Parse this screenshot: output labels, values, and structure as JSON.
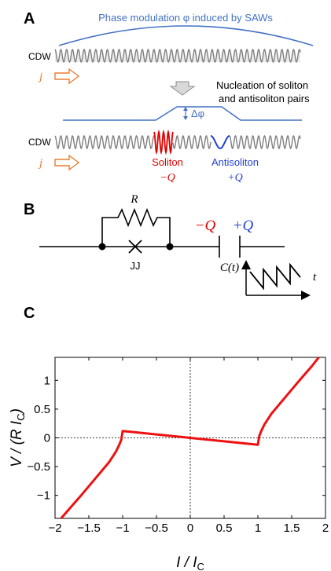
{
  "panel_a": {
    "letter": "A",
    "phase_label": "Phase modulation φ induced by SAWs",
    "cdw_label": "CDW",
    "current_label": "j",
    "nucleation_text_1": "Nucleation of soliton",
    "nucleation_text_2": "and antisoliton pairs",
    "delta_phi": "Δφ",
    "soliton_label": "Soliton",
    "soliton_charge": "−Q",
    "antisoliton_label": "Antisoliton",
    "antisoliton_charge": "+Q"
  },
  "panel_b": {
    "letter": "B",
    "resistor_label": "R",
    "junction_label": "JJ",
    "minus_q": "−Q",
    "plus_q": "+Q",
    "capacitor_label": "C(t)",
    "time_label": "t"
  },
  "panel_c": {
    "letter": "C"
  },
  "colors": {
    "phase_blue": "#4472c4",
    "wave_gray": "#7f7f7f",
    "soliton_red": "#e00000",
    "antisoliton_blue": "#1f3fd6",
    "arrow_orange": "#ed7d31",
    "curve_red": "#ee1111"
  },
  "chart_data": {
    "type": "line",
    "xlabel": "I / I_C",
    "ylabel": "V / (R I_C)",
    "xlim": [
      -2,
      2
    ],
    "ylim": [
      -1.4,
      1.4
    ],
    "xticks": [
      "−2",
      "−1.5",
      "−1",
      "−0.5",
      "0",
      "0.5",
      "1",
      "1.5",
      "2"
    ],
    "yticks": [
      "−1",
      "−0.5",
      "0",
      "0.5",
      "1"
    ],
    "xtick_values": [
      -2,
      -1.5,
      -1,
      -0.5,
      0,
      0.5,
      1,
      1.5,
      2
    ],
    "ytick_values": [
      -1,
      -0.5,
      0,
      0.5,
      1
    ],
    "series": [
      {
        "x": [
          -1.91,
          -1.8,
          -1.6,
          -1.4,
          -1.2,
          -1.1,
          -1.05,
          -1.02,
          -1.0,
          -0.5,
          0.0,
          0.5,
          1.0,
          1.02,
          1.05,
          1.1,
          1.2,
          1.4,
          1.6,
          1.8,
          1.9
        ],
        "y": [
          -1.4,
          -1.25,
          -0.98,
          -0.7,
          -0.42,
          -0.24,
          -0.12,
          -0.03,
          0.12,
          0.06,
          0.0,
          -0.06,
          -0.12,
          0.03,
          0.12,
          0.24,
          0.42,
          0.7,
          0.98,
          1.25,
          1.4
        ]
      }
    ]
  }
}
